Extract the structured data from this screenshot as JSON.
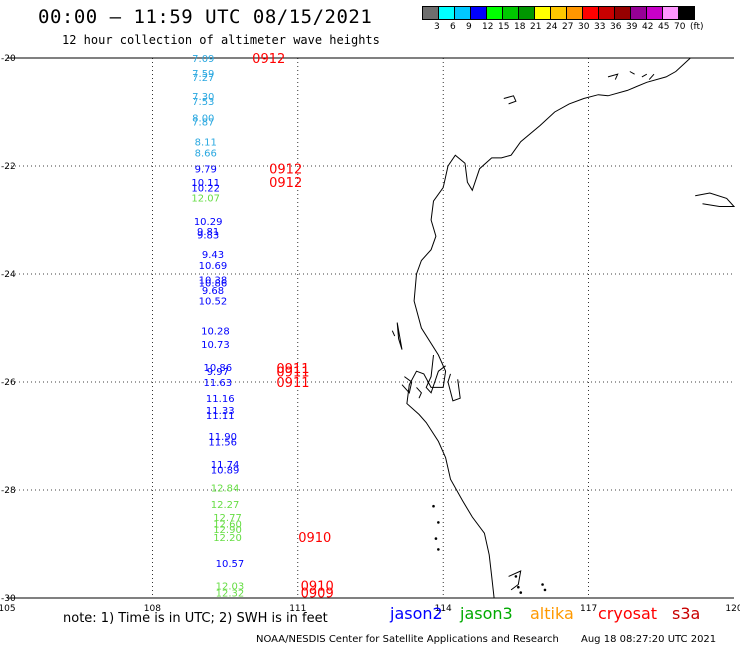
{
  "header": {
    "title": "00:00 – 11:59 UTC 08/15/2021",
    "subtitle": "12 hour collection of altimeter wave heights"
  },
  "colorbar": {
    "colors": [
      "#6e6e6e",
      "#00ffff",
      "#00c8ff",
      "#0000ff",
      "#00ff00",
      "#00c800",
      "#009600",
      "#ffff00",
      "#ffc800",
      "#ff9600",
      "#ff0000",
      "#c80000",
      "#960000",
      "#960096",
      "#c800c8",
      "#ff96ff",
      "#000000"
    ],
    "labels": [
      "3",
      "6",
      "9",
      "12",
      "15",
      "18",
      "21",
      "24",
      "27",
      "30",
      "33",
      "36",
      "39",
      "42",
      "45",
      "70",
      "(ft)"
    ]
  },
  "footer": {
    "note": "note: 1) Time is in UTC; 2) SWH is in feet",
    "credit": "NOAA/NESDIS Center for Satellite Applications and Research",
    "timestamp": "Aug 18 08:27:20 UTC 2021"
  },
  "legend": [
    {
      "name": "jason2",
      "color": "#0000ff"
    },
    {
      "name": "jason3",
      "color": "#00aa00"
    },
    {
      "name": "altika",
      "color": "#ff9900"
    },
    {
      "name": "cryosat",
      "color": "#ff0000"
    },
    {
      "name": "s3a",
      "color": "#c80000"
    }
  ],
  "chart_data": {
    "type": "map",
    "x_ticks": [
      105,
      108,
      111,
      114,
      117,
      120
    ],
    "y_ticks": [
      -20,
      -22,
      -24,
      -26,
      -28,
      -30
    ],
    "x_tick_labels": [
      "105",
      "108",
      "111",
      "114",
      "117",
      "120"
    ],
    "y_tick_labels": [
      "-20",
      "-22",
      "-24",
      "-26",
      "-28",
      "-30"
    ],
    "xlim": [
      105,
      120
    ],
    "ylim": [
      -30,
      -20
    ],
    "grid": true,
    "coastline_color": "#000000",
    "observations": [
      {
        "lon": 109.05,
        "lat": -20.0,
        "swh": "7.09",
        "color": "#2aa8e0"
      },
      {
        "lon": 109.05,
        "lat": -20.28,
        "swh": "7.59",
        "color": "#2aa8e0"
      },
      {
        "lon": 109.05,
        "lat": -20.35,
        "swh": "7.27",
        "color": "#2aa8e0"
      },
      {
        "lon": 109.05,
        "lat": -20.7,
        "swh": "7.30",
        "color": "#2aa8e0"
      },
      {
        "lon": 109.05,
        "lat": -20.8,
        "swh": "7.53",
        "color": "#2aa8e0"
      },
      {
        "lon": 109.05,
        "lat": -21.1,
        "swh": "8.00",
        "color": "#2aa8e0"
      },
      {
        "lon": 109.05,
        "lat": -21.18,
        "swh": "7.87",
        "color": "#2aa8e0"
      },
      {
        "lon": 109.1,
        "lat": -21.55,
        "swh": "8.11",
        "color": "#2aa8e0"
      },
      {
        "lon": 109.1,
        "lat": -21.75,
        "swh": "8.66",
        "color": "#2aa8e0"
      },
      {
        "lon": 109.1,
        "lat": -22.05,
        "swh": "9.79",
        "color": "#0000ff"
      },
      {
        "lon": 109.1,
        "lat": -22.3,
        "swh": "10.11",
        "color": "#0000ff"
      },
      {
        "lon": 109.1,
        "lat": -22.4,
        "swh": "10.22",
        "color": "#0000ff"
      },
      {
        "lon": 109.1,
        "lat": -22.58,
        "swh": "12.07",
        "color": "#66dd44"
      },
      {
        "lon": 109.15,
        "lat": -23.02,
        "swh": "10.29",
        "color": "#0000ff"
      },
      {
        "lon": 109.15,
        "lat": -23.2,
        "swh": "9.81",
        "color": "#0000ff"
      },
      {
        "lon": 109.15,
        "lat": -23.27,
        "swh": "9.83",
        "color": "#0000ff"
      },
      {
        "lon": 109.25,
        "lat": -23.63,
        "swh": "9.43",
        "color": "#0000ff"
      },
      {
        "lon": 109.25,
        "lat": -23.83,
        "swh": "10.69",
        "color": "#0000ff"
      },
      {
        "lon": 109.25,
        "lat": -24.1,
        "swh": "10.38",
        "color": "#0000ff"
      },
      {
        "lon": 109.25,
        "lat": -24.16,
        "swh": "10.86",
        "color": "#0000ff"
      },
      {
        "lon": 109.25,
        "lat": -24.3,
        "swh": "9.68",
        "color": "#0000ff"
      },
      {
        "lon": 109.25,
        "lat": -24.49,
        "swh": "10.52",
        "color": "#0000ff"
      },
      {
        "lon": 109.3,
        "lat": -25.05,
        "swh": "10.28",
        "color": "#0000ff"
      },
      {
        "lon": 109.3,
        "lat": -25.3,
        "swh": "10.73",
        "color": "#0000ff"
      },
      {
        "lon": 109.35,
        "lat": -25.72,
        "swh": "10.86",
        "color": "#0000ff"
      },
      {
        "lon": 109.35,
        "lat": -25.8,
        "swh": "9.97",
        "color": "#0000ff"
      },
      {
        "lon": 109.35,
        "lat": -26.0,
        "swh": "11.63",
        "color": "#0000ff"
      },
      {
        "lon": 109.4,
        "lat": -26.3,
        "swh": "11.16",
        "color": "#0000ff"
      },
      {
        "lon": 109.4,
        "lat": -26.52,
        "swh": "11.33",
        "color": "#0000ff"
      },
      {
        "lon": 109.4,
        "lat": -26.61,
        "swh": "11.11",
        "color": "#0000ff"
      },
      {
        "lon": 109.45,
        "lat": -27.0,
        "swh": "11.90",
        "color": "#0000ff"
      },
      {
        "lon": 109.45,
        "lat": -27.1,
        "swh": "11.56",
        "color": "#0000ff"
      },
      {
        "lon": 109.5,
        "lat": -27.52,
        "swh": "11.74",
        "color": "#0000ff"
      },
      {
        "lon": 109.5,
        "lat": -27.62,
        "swh": "10.89",
        "color": "#0000ff"
      },
      {
        "lon": 109.5,
        "lat": -27.95,
        "swh": "12.84",
        "color": "#66dd44"
      },
      {
        "lon": 109.5,
        "lat": -28.26,
        "swh": "12.27",
        "color": "#66dd44"
      },
      {
        "lon": 109.55,
        "lat": -28.5,
        "swh": "12.77",
        "color": "#66dd44"
      },
      {
        "lon": 109.55,
        "lat": -28.62,
        "swh": "12.60",
        "color": "#66dd44"
      },
      {
        "lon": 109.55,
        "lat": -28.72,
        "swh": "12.90",
        "color": "#66dd44"
      },
      {
        "lon": 109.55,
        "lat": -28.87,
        "swh": "12.20",
        "color": "#66dd44"
      },
      {
        "lon": 109.6,
        "lat": -29.35,
        "swh": "10.57",
        "color": "#0000ff"
      },
      {
        "lon": 109.6,
        "lat": -29.77,
        "swh": "12.03",
        "color": "#66dd44"
      },
      {
        "lon": 109.6,
        "lat": -29.9,
        "swh": "12.32",
        "color": "#66dd44"
      }
    ],
    "time_labels": [
      {
        "lon": 110.4,
        "lat": -20.0,
        "text": "0912",
        "color": "#ff0000"
      },
      {
        "lon": 110.75,
        "lat": -22.05,
        "text": "0912",
        "color": "#ff0000"
      },
      {
        "lon": 110.75,
        "lat": -22.3,
        "text": "0912",
        "color": "#ff0000"
      },
      {
        "lon": 110.9,
        "lat": -25.74,
        "text": "0911",
        "color": "#ff0000"
      },
      {
        "lon": 110.9,
        "lat": -25.81,
        "text": "0911",
        "color": "#ff0000"
      },
      {
        "lon": 110.9,
        "lat": -26.0,
        "text": "0911",
        "color": "#ff0000"
      },
      {
        "lon": 111.35,
        "lat": -28.87,
        "text": "0910",
        "color": "#ff0000"
      },
      {
        "lon": 111.4,
        "lat": -29.77,
        "text": "0910",
        "color": "#ff0000"
      },
      {
        "lon": 111.4,
        "lat": -29.9,
        "text": "0909",
        "color": "#ff0000"
      }
    ]
  }
}
